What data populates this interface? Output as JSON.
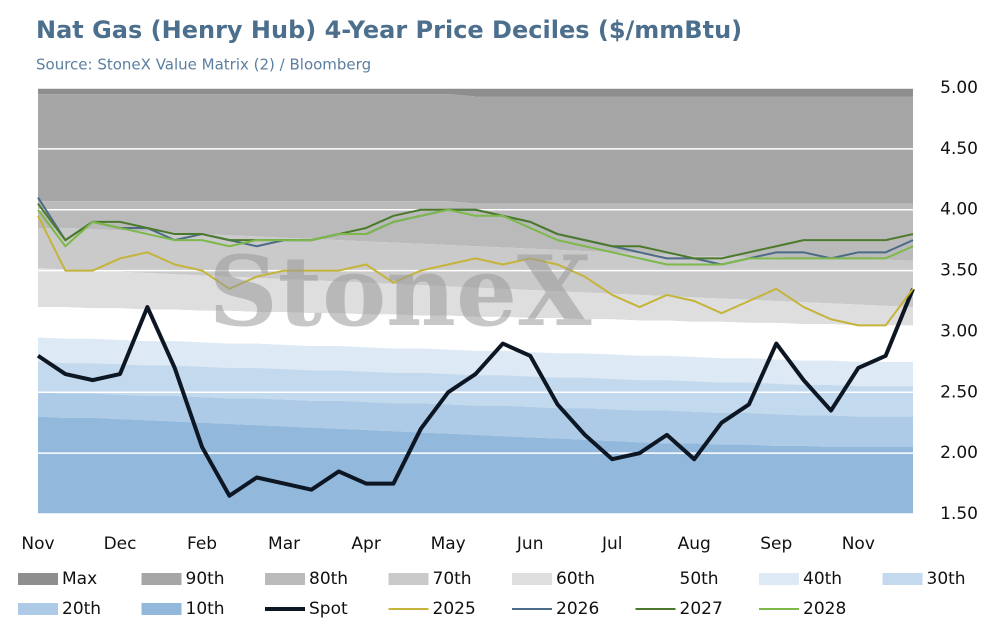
{
  "chart_data": {
    "type": "line",
    "title": "Nat Gas (Henry Hub) 4-Year Price Deciles ($/mmBtu)",
    "subtitle": "Source: StoneX Value Matrix (2) / Bloomberg",
    "watermark": "StoneX",
    "categories": [
      "Nov",
      null,
      null,
      "Dec",
      null,
      null,
      "Feb",
      null,
      null,
      "Mar",
      null,
      null,
      "Apr",
      null,
      null,
      "May",
      null,
      null,
      "Jun",
      null,
      null,
      "Jul",
      null,
      null,
      "Aug",
      null,
      null,
      "Sep",
      null,
      null,
      "Nov",
      null,
      null
    ],
    "ylim": [
      1.5,
      5.0
    ],
    "yticks": [
      {
        "value": 1.5,
        "label": "1.50"
      },
      {
        "value": 2.0,
        "label": "2.00"
      },
      {
        "value": 2.5,
        "label": "2.50"
      },
      {
        "value": 3.0,
        "label": "3.00"
      },
      {
        "value": 3.5,
        "label": "3.50"
      },
      {
        "value": 4.0,
        "label": "4.00"
      },
      {
        "value": 4.5,
        "label": "4.50"
      },
      {
        "value": 5.0,
        "label": "5.00"
      }
    ],
    "grid": true,
    "series": [
      {
        "name": "Max",
        "kind": "band",
        "color": "#8e8e8e",
        "values": [
          5.0,
          5.0,
          5.0,
          5.0,
          5.0,
          5.0,
          5.0,
          5.0,
          5.0,
          5.0,
          5.0,
          5.0,
          5.0,
          5.0,
          5.0,
          5.0,
          5.0,
          5.0,
          5.0,
          5.0,
          5.0,
          5.0,
          5.0,
          5.0,
          5.0,
          5.0,
          5.0,
          5.0,
          5.0,
          5.0,
          5.0,
          5.0,
          5.0
        ]
      },
      {
        "name": "90th",
        "kind": "band",
        "color": "#a6a6a6",
        "values": [
          4.95,
          4.95,
          4.95,
          4.95,
          4.95,
          4.95,
          4.95,
          4.95,
          4.95,
          4.95,
          4.95,
          4.95,
          4.95,
          4.95,
          4.95,
          4.95,
          4.93,
          4.93,
          4.93,
          4.93,
          4.93,
          4.93,
          4.93,
          4.93,
          4.93,
          4.93,
          4.93,
          4.93,
          4.93,
          4.93,
          4.93,
          4.93,
          4.93
        ]
      },
      {
        "name": "80th",
        "kind": "band",
        "color": "#bababa",
        "values": [
          4.07,
          4.07,
          4.07,
          4.07,
          4.07,
          4.07,
          4.07,
          4.07,
          4.07,
          4.07,
          4.07,
          4.07,
          4.07,
          4.07,
          4.07,
          4.07,
          4.05,
          4.05,
          4.05,
          4.05,
          4.05,
          4.05,
          4.05,
          4.05,
          4.05,
          4.05,
          4.05,
          4.05,
          4.05,
          4.05,
          4.05,
          4.05,
          4.05
        ]
      },
      {
        "name": "70th",
        "kind": "band",
        "color": "#cacaca",
        "values": [
          3.85,
          3.85,
          3.84,
          3.83,
          3.82,
          3.81,
          3.8,
          3.79,
          3.78,
          3.77,
          3.76,
          3.75,
          3.74,
          3.73,
          3.72,
          3.71,
          3.7,
          3.69,
          3.68,
          3.67,
          3.66,
          3.65,
          3.64,
          3.63,
          3.62,
          3.62,
          3.61,
          3.61,
          3.6,
          3.6,
          3.6,
          3.59,
          3.58
        ]
      },
      {
        "name": "60th",
        "kind": "band",
        "color": "#dedede",
        "values": [
          3.52,
          3.51,
          3.5,
          3.49,
          3.48,
          3.47,
          3.46,
          3.45,
          3.44,
          3.43,
          3.42,
          3.41,
          3.4,
          3.39,
          3.38,
          3.37,
          3.36,
          3.35,
          3.34,
          3.33,
          3.32,
          3.31,
          3.3,
          3.29,
          3.28,
          3.27,
          3.26,
          3.25,
          3.24,
          3.23,
          3.22,
          3.21,
          3.2
        ]
      },
      {
        "name": "50th",
        "kind": "band",
        "color": "#ffffff",
        "values": [
          3.2,
          3.2,
          3.19,
          3.19,
          3.18,
          3.18,
          3.17,
          3.17,
          3.16,
          3.16,
          3.15,
          3.15,
          3.14,
          3.14,
          3.13,
          3.13,
          3.12,
          3.12,
          3.11,
          3.11,
          3.1,
          3.1,
          3.09,
          3.09,
          3.08,
          3.08,
          3.07,
          3.07,
          3.06,
          3.06,
          3.05,
          3.05,
          3.05
        ]
      },
      {
        "name": "40th",
        "kind": "band",
        "color": "#dde9f5",
        "values": [
          2.95,
          2.94,
          2.94,
          2.93,
          2.92,
          2.92,
          2.91,
          2.9,
          2.9,
          2.89,
          2.88,
          2.88,
          2.87,
          2.86,
          2.86,
          2.85,
          2.84,
          2.84,
          2.83,
          2.82,
          2.82,
          2.81,
          2.8,
          2.8,
          2.79,
          2.78,
          2.78,
          2.77,
          2.76,
          2.76,
          2.75,
          2.75,
          2.75
        ]
      },
      {
        "name": "30th",
        "kind": "band",
        "color": "#c3d9ed",
        "values": [
          2.75,
          2.74,
          2.74,
          2.73,
          2.72,
          2.72,
          2.71,
          2.7,
          2.7,
          2.69,
          2.68,
          2.68,
          2.67,
          2.66,
          2.66,
          2.65,
          2.64,
          2.64,
          2.63,
          2.62,
          2.62,
          2.61,
          2.6,
          2.6,
          2.59,
          2.58,
          2.58,
          2.57,
          2.56,
          2.56,
          2.55,
          2.55,
          2.55
        ]
      },
      {
        "name": "20th",
        "kind": "band",
        "color": "#adcbe6",
        "values": [
          2.5,
          2.49,
          2.49,
          2.48,
          2.47,
          2.47,
          2.46,
          2.45,
          2.45,
          2.44,
          2.43,
          2.43,
          2.42,
          2.41,
          2.41,
          2.4,
          2.39,
          2.39,
          2.38,
          2.37,
          2.37,
          2.36,
          2.35,
          2.35,
          2.34,
          2.33,
          2.33,
          2.32,
          2.31,
          2.31,
          2.3,
          2.3,
          2.3
        ]
      },
      {
        "name": "10th",
        "kind": "band",
        "color": "#92b8dc",
        "values": [
          2.3,
          2.29,
          2.29,
          2.28,
          2.27,
          2.26,
          2.25,
          2.24,
          2.23,
          2.22,
          2.21,
          2.2,
          2.19,
          2.18,
          2.17,
          2.16,
          2.15,
          2.14,
          2.13,
          2.12,
          2.11,
          2.1,
          2.09,
          2.08,
          2.08,
          2.07,
          2.07,
          2.06,
          2.06,
          2.05,
          2.05,
          2.05,
          2.05
        ]
      },
      {
        "name": "Spot",
        "kind": "line",
        "color": "#0d1623",
        "values": [
          2.8,
          2.65,
          2.6,
          2.65,
          3.2,
          2.7,
          2.05,
          1.65,
          1.8,
          1.75,
          1.7,
          1.85,
          1.75,
          1.75,
          2.2,
          2.5,
          2.65,
          2.9,
          2.8,
          2.4,
          2.15,
          1.95,
          2.0,
          2.15,
          1.95,
          2.25,
          2.4,
          2.9,
          2.6,
          2.35,
          2.7,
          2.8,
          3.35
        ]
      },
      {
        "name": "2025",
        "kind": "line",
        "color": "#c4b43a",
        "values": [
          3.95,
          3.5,
          3.5,
          3.6,
          3.65,
          3.55,
          3.5,
          3.35,
          3.45,
          3.5,
          3.5,
          3.5,
          3.55,
          3.4,
          3.5,
          3.55,
          3.6,
          3.55,
          3.6,
          3.55,
          3.45,
          3.3,
          3.2,
          3.3,
          3.25,
          3.15,
          3.25,
          3.35,
          3.2,
          3.1,
          3.05,
          3.05,
          3.35
        ]
      },
      {
        "name": "2026",
        "kind": "line",
        "color": "#4b6b87",
        "values": [
          4.1,
          3.75,
          3.9,
          3.85,
          3.85,
          3.75,
          3.8,
          3.75,
          3.7,
          3.75,
          3.75,
          3.8,
          3.8,
          3.9,
          3.95,
          4.0,
          4.0,
          3.95,
          3.9,
          3.8,
          3.75,
          3.7,
          3.65,
          3.6,
          3.6,
          3.55,
          3.6,
          3.65,
          3.65,
          3.6,
          3.65,
          3.65,
          3.75
        ]
      },
      {
        "name": "2027",
        "kind": "line",
        "color": "#4c7a2c",
        "values": [
          4.05,
          3.75,
          3.9,
          3.9,
          3.85,
          3.8,
          3.8,
          3.75,
          3.75,
          3.75,
          3.75,
          3.8,
          3.85,
          3.95,
          4.0,
          4.0,
          4.0,
          3.95,
          3.9,
          3.8,
          3.75,
          3.7,
          3.7,
          3.65,
          3.6,
          3.6,
          3.65,
          3.7,
          3.75,
          3.75,
          3.75,
          3.75,
          3.8
        ]
      },
      {
        "name": "2028",
        "kind": "line",
        "color": "#7cb84a",
        "values": [
          4.0,
          3.7,
          3.9,
          3.85,
          3.8,
          3.75,
          3.75,
          3.7,
          3.75,
          3.75,
          3.75,
          3.8,
          3.8,
          3.9,
          3.95,
          4.0,
          3.95,
          3.95,
          3.85,
          3.75,
          3.7,
          3.65,
          3.6,
          3.55,
          3.55,
          3.55,
          3.6,
          3.6,
          3.6,
          3.6,
          3.6,
          3.6,
          3.7
        ]
      }
    ]
  }
}
